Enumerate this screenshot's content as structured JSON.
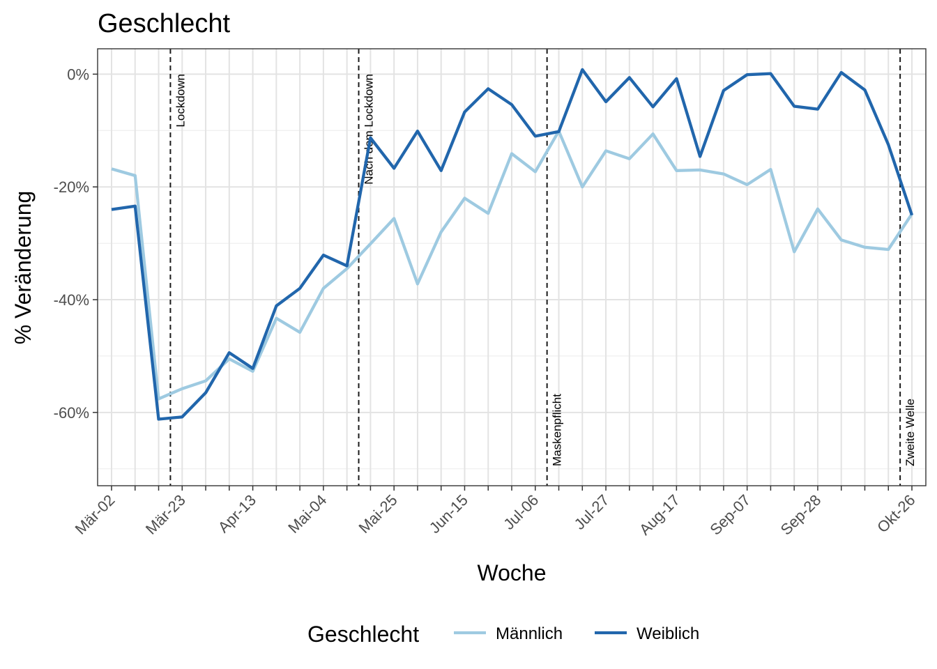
{
  "chart_data": {
    "type": "line",
    "title": "Geschlecht",
    "xlabel": "Woche",
    "ylabel": "% Veränderung",
    "x": [
      "Mär-02",
      "Mär-09",
      "Mär-16",
      "Mär-23",
      "Mär-30",
      "Apr-06",
      "Apr-13",
      "Apr-20",
      "Apr-27",
      "Mai-04",
      "Mai-11",
      "Mai-18",
      "Mai-25",
      "Jun-01",
      "Jun-08",
      "Jun-15",
      "Jun-22",
      "Jun-29",
      "Jul-06",
      "Jul-13",
      "Jul-20",
      "Jul-27",
      "Aug-03",
      "Aug-10",
      "Aug-17",
      "Aug-24",
      "Aug-31",
      "Sep-07",
      "Sep-14",
      "Sep-21",
      "Sep-28",
      "Okt-05",
      "Okt-12",
      "Okt-19",
      "Okt-26"
    ],
    "x_tick_labels": [
      "Mär-02",
      "Mär-23",
      "Apr-13",
      "Mai-04",
      "Mai-25",
      "Jun-15",
      "Jul-06",
      "Jul-27",
      "Aug-17",
      "Sep-07",
      "Sep-28",
      "Okt-26"
    ],
    "y_ticks": [
      0,
      -20,
      -40,
      -60
    ],
    "y_tick_labels": [
      "0%",
      "-20%",
      "-40%",
      "-60%"
    ],
    "ylim": [
      -73,
      4.5
    ],
    "grid": true,
    "legend_position": "bottom",
    "legend_title": "Geschlecht",
    "series": [
      {
        "name": "Männlich",
        "color": "#9ecae1",
        "values": [
          -16.8,
          -18.0,
          -57.6,
          -55.8,
          -54.4,
          -50.5,
          -52.7,
          -43.3,
          -45.8,
          -38.0,
          -34.5,
          -30.1,
          -25.6,
          -37.2,
          -28.0,
          -22.0,
          -24.7,
          -14.1,
          -17.3,
          -10.1,
          -20.0,
          -13.6,
          -15.0,
          -10.6,
          -17.1,
          -17.0,
          -17.7,
          -19.6,
          -16.9,
          -31.5,
          -23.9,
          -29.4,
          -30.7,
          -31.1,
          -24.8
        ]
      },
      {
        "name": "Weiblich",
        "color": "#2166ac",
        "values": [
          -24.0,
          -23.4,
          -61.2,
          -60.8,
          -56.5,
          -49.4,
          -52.2,
          -41.1,
          -38.0,
          -32.1,
          -34.0,
          -11.3,
          -16.7,
          -10.1,
          -17.1,
          -6.7,
          -2.6,
          -5.4,
          -11.0,
          -10.2,
          0.8,
          -4.9,
          -0.6,
          -5.8,
          -0.8,
          -14.6,
          -2.9,
          -0.1,
          0.1,
          -5.7,
          -6.2,
          0.3,
          -2.8,
          -12.5,
          -25.0
        ]
      }
    ],
    "events": [
      {
        "label": "Lockdown",
        "x": 2.5
      },
      {
        "label": "Nach dem Lockdown",
        "x": 10.5
      },
      {
        "label": "Maskenpflicht",
        "x": 18.5
      },
      {
        "label": "Zweite Welle",
        "x": 33.5
      }
    ]
  }
}
